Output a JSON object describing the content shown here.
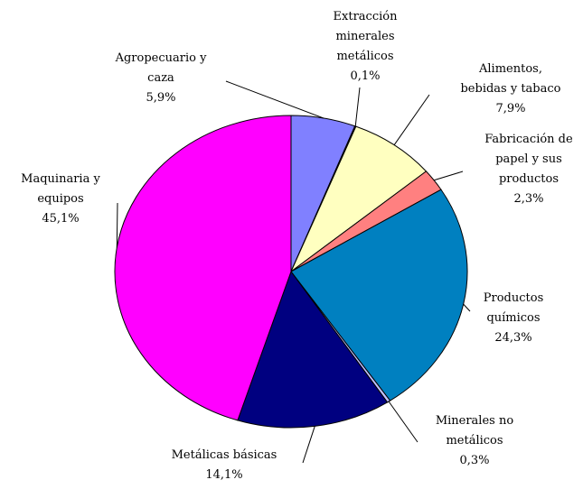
{
  "chart_data": {
    "type": "pie",
    "categories": [
      "Agropecuario y\ncaza",
      "Extracción\nminerales\nmetálicos",
      "Alimentos,\nbebidas y tabaco",
      "Fabricación de\npapel y sus\nproductos",
      "Productos\nquímicos",
      "Minerales no\nmetálicos",
      "Metálicas básicas",
      "Maquinaria y\nequipos"
    ],
    "values": [
      5.9,
      0.1,
      7.9,
      2.3,
      24.3,
      0.3,
      14.1,
      45.1
    ],
    "value_labels": [
      "5,9%",
      "0,1%",
      "7,9%",
      "2,3%",
      "24,3%",
      "0,3%",
      "14,1%",
      "45,1%"
    ],
    "colors": [
      "#8080ff",
      "#800040",
      "#ffffc0",
      "#ff8080",
      "#0080c0",
      "#c0c0ff",
      "#000080",
      "#ff00ff"
    ]
  }
}
